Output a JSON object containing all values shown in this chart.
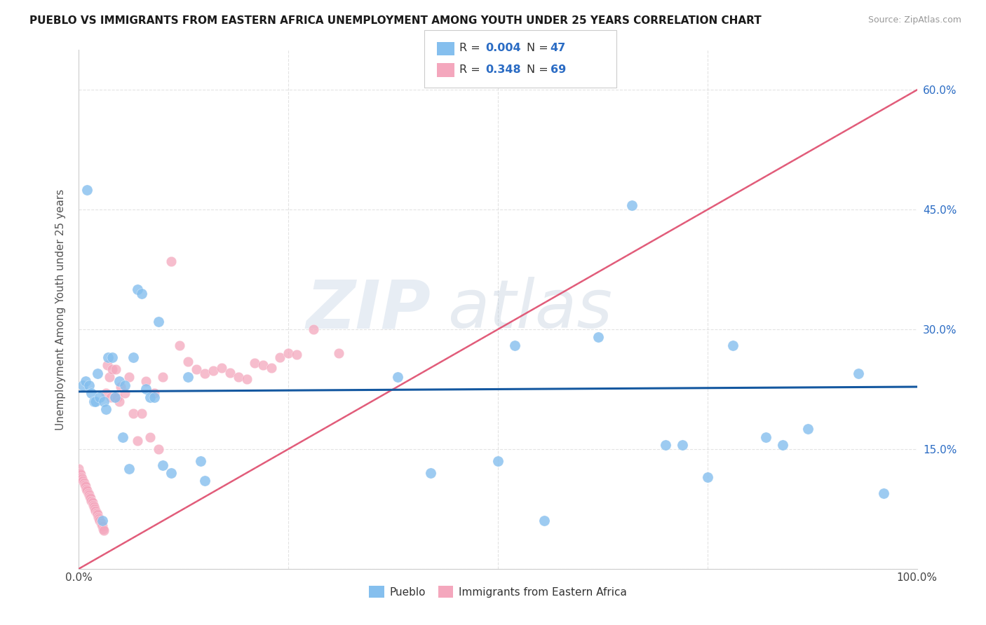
{
  "title": "PUEBLO VS IMMIGRANTS FROM EASTERN AFRICA UNEMPLOYMENT AMONG YOUTH UNDER 25 YEARS CORRELATION CHART",
  "source": "Source: ZipAtlas.com",
  "ylabel": "Unemployment Among Youth under 25 years",
  "xlim": [
    0.0,
    1.0
  ],
  "ylim": [
    0.0,
    0.65
  ],
  "xticks": [
    0.0,
    0.25,
    0.5,
    0.75,
    1.0
  ],
  "yticks": [
    0.0,
    0.15,
    0.3,
    0.45,
    0.6
  ],
  "right_ytick_labels": [
    "",
    "15.0%",
    "30.0%",
    "45.0%",
    "60.0%"
  ],
  "pueblo_color": "#85BFEE",
  "eastern_africa_color": "#F4A7BD",
  "pueblo_line_color": "#1458A0",
  "eastern_africa_line_color": "#E05070",
  "dashed_line_color": "#E8B0C0",
  "r_value_color": "#2B6CC4",
  "n_value_color": "#2B6CC4",
  "pueblo_points_x": [
    0.005,
    0.008,
    0.01,
    0.012,
    0.015,
    0.018,
    0.02,
    0.022,
    0.025,
    0.028,
    0.03,
    0.032,
    0.035,
    0.04,
    0.043,
    0.048,
    0.052,
    0.055,
    0.06,
    0.065,
    0.07,
    0.075,
    0.08,
    0.085,
    0.09,
    0.095,
    0.1,
    0.11,
    0.13,
    0.145,
    0.15,
    0.38,
    0.42,
    0.5,
    0.52,
    0.555,
    0.62,
    0.66,
    0.7,
    0.72,
    0.75,
    0.78,
    0.82,
    0.84,
    0.87,
    0.93,
    0.96
  ],
  "pueblo_points_y": [
    0.23,
    0.235,
    0.475,
    0.23,
    0.22,
    0.21,
    0.21,
    0.245,
    0.215,
    0.06,
    0.21,
    0.2,
    0.265,
    0.265,
    0.215,
    0.235,
    0.165,
    0.23,
    0.125,
    0.265,
    0.35,
    0.345,
    0.225,
    0.215,
    0.215,
    0.31,
    0.13,
    0.12,
    0.24,
    0.135,
    0.11,
    0.24,
    0.12,
    0.135,
    0.28,
    0.06,
    0.29,
    0.455,
    0.155,
    0.155,
    0.115,
    0.28,
    0.165,
    0.155,
    0.175,
    0.245,
    0.095
  ],
  "eastern_africa_points_x": [
    0.0,
    0.001,
    0.002,
    0.003,
    0.004,
    0.005,
    0.006,
    0.007,
    0.008,
    0.009,
    0.01,
    0.011,
    0.012,
    0.013,
    0.014,
    0.015,
    0.016,
    0.017,
    0.018,
    0.019,
    0.02,
    0.021,
    0.022,
    0.023,
    0.024,
    0.025,
    0.026,
    0.027,
    0.028,
    0.029,
    0.03,
    0.032,
    0.034,
    0.036,
    0.038,
    0.04,
    0.042,
    0.044,
    0.046,
    0.048,
    0.05,
    0.055,
    0.06,
    0.065,
    0.07,
    0.075,
    0.08,
    0.085,
    0.09,
    0.095,
    0.1,
    0.11,
    0.12,
    0.13,
    0.14,
    0.15,
    0.16,
    0.17,
    0.18,
    0.19,
    0.2,
    0.21,
    0.22,
    0.23,
    0.24,
    0.25,
    0.26,
    0.28,
    0.31
  ],
  "eastern_africa_points_y": [
    0.125,
    0.12,
    0.118,
    0.115,
    0.113,
    0.11,
    0.108,
    0.105,
    0.103,
    0.1,
    0.098,
    0.095,
    0.093,
    0.09,
    0.088,
    0.085,
    0.083,
    0.08,
    0.078,
    0.075,
    0.073,
    0.07,
    0.068,
    0.065,
    0.063,
    0.06,
    0.058,
    0.055,
    0.053,
    0.05,
    0.048,
    0.22,
    0.255,
    0.24,
    0.215,
    0.25,
    0.215,
    0.25,
    0.215,
    0.21,
    0.228,
    0.22,
    0.24,
    0.195,
    0.16,
    0.195,
    0.235,
    0.165,
    0.22,
    0.15,
    0.24,
    0.385,
    0.28,
    0.26,
    0.25,
    0.245,
    0.248,
    0.252,
    0.246,
    0.24,
    0.238,
    0.258,
    0.255,
    0.252,
    0.265,
    0.27,
    0.268,
    0.3,
    0.27
  ],
  "pueblo_trend_x": [
    0.0,
    1.0
  ],
  "pueblo_trend_y": [
    0.222,
    0.228
  ],
  "eastern_africa_trend_x": [
    0.0,
    1.0
  ],
  "eastern_africa_trend_y": [
    0.0,
    0.6
  ],
  "dashed_trend_x": [
    0.0,
    1.0
  ],
  "dashed_trend_y": [
    0.0,
    0.6
  ],
  "watermark_zip": "ZIP",
  "watermark_atlas": "atlas",
  "background_color": "#FFFFFF",
  "grid_color": "#DDDDDD",
  "spine_color": "#CCCCCC"
}
